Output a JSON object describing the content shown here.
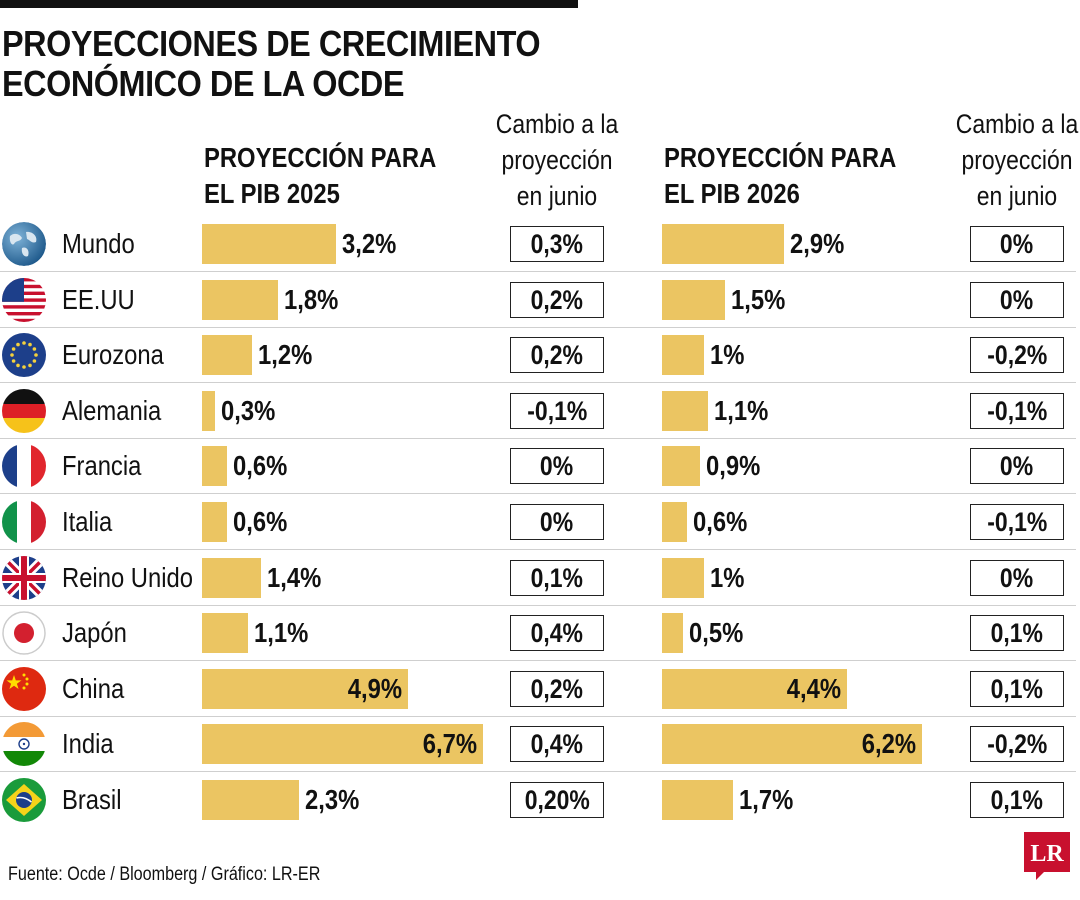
{
  "title": [
    "PROYECCIONES DE CRECIMIENTO",
    "ECONÓMICO DE LA OCDE"
  ],
  "headers": {
    "pib2025": [
      "PROYECCIÓN PARA",
      "EL PIB 2025"
    ],
    "pib2026": [
      "PROYECCIÓN PARA",
      "EL PIB 2026"
    ],
    "change": [
      "Cambio a la",
      "proyección",
      "en junio"
    ]
  },
  "colors": {
    "bar": "#ebc562",
    "logo": "#c8102e"
  },
  "chart_data": {
    "type": "bar",
    "title": "PROYECCIONES DE CRECIMIENTO ECONÓMICO DE LA OCDE",
    "categories": [
      "Mundo",
      "EE.UU",
      "Eurozona",
      "Alemania",
      "Francia",
      "Italia",
      "Reino Unido",
      "Japón",
      "China",
      "India",
      "Brasil"
    ],
    "series": [
      {
        "name": "PROYECCIÓN PARA EL PIB 2025",
        "values": [
          3.2,
          1.8,
          1.2,
          0.3,
          0.6,
          0.6,
          1.4,
          1.1,
          4.9,
          6.7,
          2.3
        ]
      },
      {
        "name": "PROYECCIÓN PARA EL PIB 2026",
        "values": [
          2.9,
          1.5,
          1.0,
          1.1,
          0.9,
          0.6,
          1.0,
          0.5,
          4.4,
          6.2,
          1.7
        ]
      }
    ],
    "labels2025": [
      "3,2%",
      "1,8%",
      "1,2%",
      "0,3%",
      "0,6%",
      "0,6%",
      "1,4%",
      "1,1%",
      "4,9%",
      "6,7%",
      "2,3%"
    ],
    "labels2026": [
      "2,9%",
      "1,5%",
      "1%",
      "1,1%",
      "0,9%",
      "0,6%",
      "1%",
      "0,5%",
      "4,4%",
      "6,2%",
      "1,7%"
    ],
    "change2025": [
      "0,3%",
      "0,2%",
      "0,2%",
      "-0,1%",
      "0%",
      "0%",
      "0,1%",
      "0,4%",
      "0,2%",
      "0,4%",
      "0,20%"
    ],
    "change2026": [
      "0%",
      "0%",
      "-0,2%",
      "-0,1%",
      "0%",
      "-0,1%",
      "0%",
      "0,1%",
      "0,1%",
      "-0,2%",
      "0,1%"
    ],
    "flags": [
      "globe-icon",
      "usa-flag-icon",
      "eu-flag-icon",
      "germany-flag-icon",
      "france-flag-icon",
      "italy-flag-icon",
      "uk-flag-icon",
      "japan-flag-icon",
      "china-flag-icon",
      "india-flag-icon",
      "brazil-flag-icon"
    ],
    "ylim": [
      0,
      7
    ]
  },
  "source": "Fuente: Ocde / Bloomberg / Gráfico: LR-ER",
  "logo": "LR"
}
